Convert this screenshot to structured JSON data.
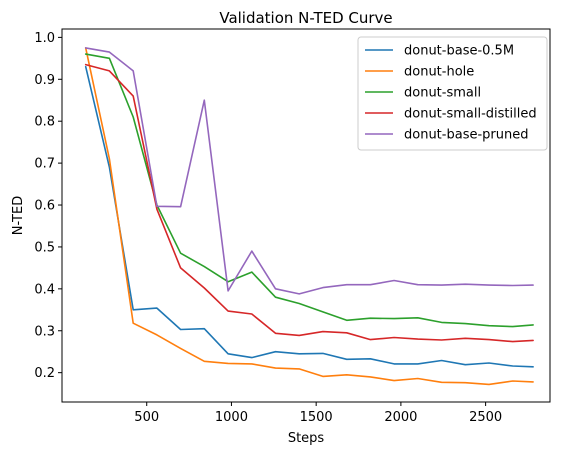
{
  "chart_data": {
    "type": "line",
    "title": "Validation N-TED Curve",
    "xlabel": "Steps",
    "ylabel": "N-TED",
    "xlim": [
      0,
      2880
    ],
    "ylim": [
      0.13,
      1.02
    ],
    "xticks": [
      500,
      1000,
      1500,
      2000,
      2500
    ],
    "yticks": [
      0.2,
      0.3,
      0.4,
      0.5,
      0.6,
      0.7,
      0.8,
      0.9,
      1.0
    ],
    "ytick_labels": [
      "0.2",
      "0.3",
      "0.4",
      "0.5",
      "0.6",
      "0.7",
      "0.8",
      "0.9",
      "1.0"
    ],
    "grid": false,
    "legend_position": "upper right",
    "x": [
      140,
      280,
      420,
      560,
      700,
      840,
      980,
      1120,
      1260,
      1400,
      1540,
      1680,
      1820,
      1960,
      2100,
      2240,
      2380,
      2520,
      2660,
      2780
    ],
    "series": [
      {
        "name": "donut-base-0.5M",
        "color": "#1f77b4",
        "values": [
          0.93,
          0.69,
          0.35,
          0.354,
          0.303,
          0.305,
          0.245,
          0.236,
          0.25,
          0.245,
          0.246,
          0.232,
          0.233,
          0.221,
          0.221,
          0.229,
          0.219,
          0.223,
          0.216,
          0.214
        ]
      },
      {
        "name": "donut-hole",
        "color": "#ff7f0e",
        "values": [
          0.975,
          0.71,
          0.318,
          0.29,
          0.258,
          0.227,
          0.222,
          0.221,
          0.211,
          0.209,
          0.191,
          0.195,
          0.19,
          0.181,
          0.186,
          0.177,
          0.176,
          0.172,
          0.18,
          0.178
        ]
      },
      {
        "name": "donut-small",
        "color": "#2ca02c",
        "values": [
          0.96,
          0.95,
          0.81,
          0.6,
          0.485,
          0.453,
          0.417,
          0.44,
          0.38,
          0.365,
          0.345,
          0.325,
          0.33,
          0.329,
          0.331,
          0.32,
          0.317,
          0.312,
          0.31,
          0.314
        ]
      },
      {
        "name": "donut-small-distilled",
        "color": "#d62728",
        "values": [
          0.935,
          0.92,
          0.86,
          0.59,
          0.45,
          0.402,
          0.347,
          0.34,
          0.294,
          0.289,
          0.298,
          0.295,
          0.279,
          0.284,
          0.28,
          0.278,
          0.282,
          0.279,
          0.274,
          0.277
        ]
      },
      {
        "name": "donut-base-pruned",
        "color": "#9467bd",
        "values": [
          0.975,
          0.965,
          0.92,
          0.597,
          0.596,
          0.85,
          0.395,
          0.49,
          0.4,
          0.388,
          0.403,
          0.41,
          0.41,
          0.42,
          0.41,
          0.409,
          0.411,
          0.409,
          0.408,
          0.409
        ]
      }
    ]
  }
}
